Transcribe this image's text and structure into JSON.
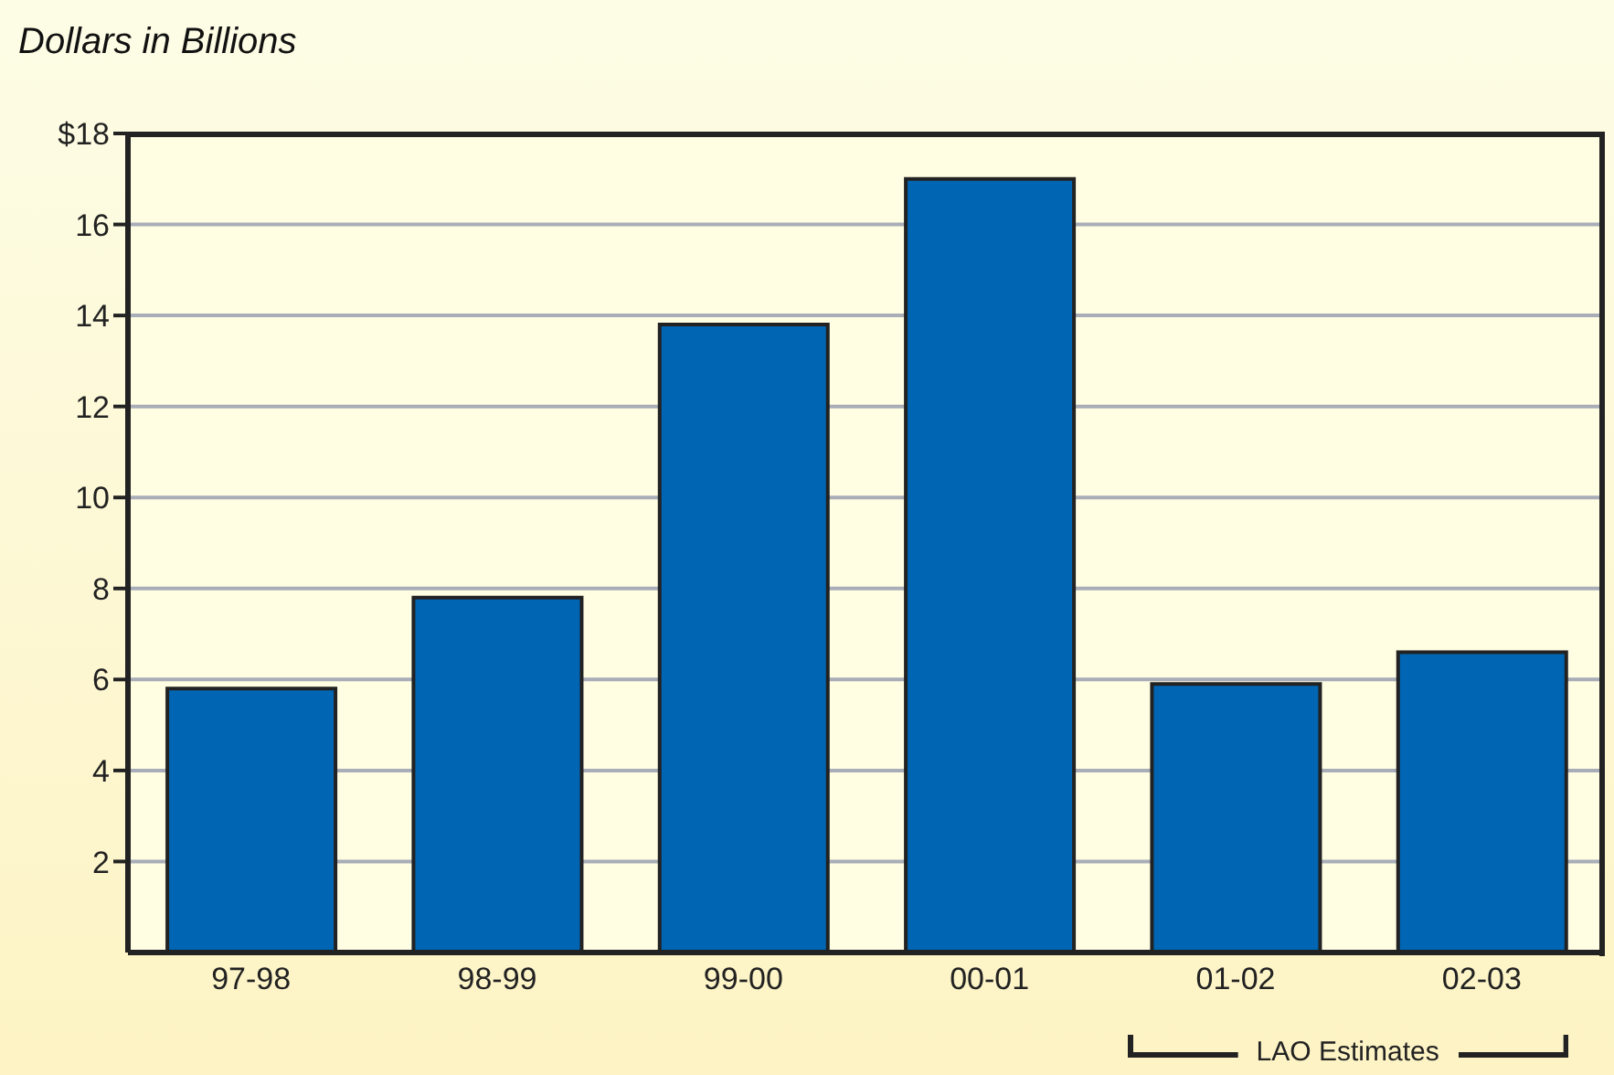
{
  "chart_data": {
    "type": "bar",
    "title": "Dollars in Billions",
    "categories": [
      "97-98",
      "98-99",
      "99-00",
      "00-01",
      "01-02",
      "02-03"
    ],
    "values": [
      5.8,
      7.8,
      13.8,
      17.0,
      5.9,
      6.6
    ],
    "color": "#0066b3",
    "ylim": [
      0,
      18
    ],
    "yticks": [
      2,
      4,
      6,
      8,
      10,
      12,
      14,
      16,
      {
        "value": 18,
        "label": "$18"
      }
    ],
    "grid": "y",
    "annotations": [
      "LAO Estimates"
    ]
  }
}
